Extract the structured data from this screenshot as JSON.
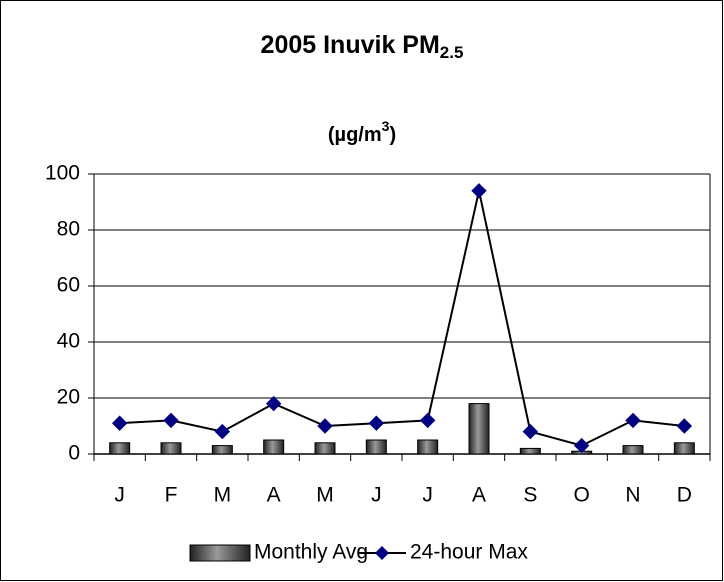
{
  "chart_data": {
    "type": "combo",
    "title": [
      "2005 Inuvik PM",
      "2.5"
    ],
    "subtitle": [
      "(µg/m",
      "3",
      ")"
    ],
    "categories": [
      "J",
      "F",
      "M",
      "A",
      "M",
      "J",
      "J",
      "A",
      "S",
      "O",
      "N",
      "D"
    ],
    "series": [
      {
        "name": "Monthly Avg",
        "type": "bar",
        "color": "#404040",
        "values": [
          4,
          4,
          3,
          5,
          4,
          5,
          5,
          18,
          2,
          1,
          3,
          4
        ]
      },
      {
        "name": "24-hour Max",
        "type": "line",
        "color": "#000080",
        "values": [
          11,
          12,
          8,
          18,
          10,
          11,
          12,
          94,
          8,
          3,
          12,
          10
        ]
      }
    ],
    "ylim": [
      0,
      100
    ],
    "yticks": [
      0,
      20,
      40,
      60,
      80,
      100
    ],
    "grid": true,
    "legend": "bottom"
  }
}
